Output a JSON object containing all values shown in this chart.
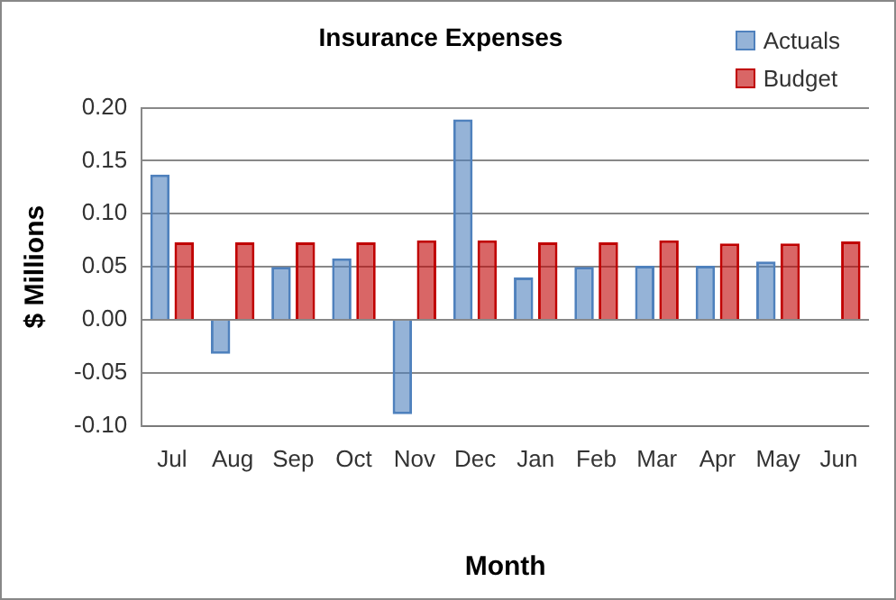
{
  "chart_data": {
    "type": "bar",
    "title": "Insurance Expenses",
    "xlabel": "Month",
    "ylabel": "$ Millions",
    "categories": [
      "Jul",
      "Aug",
      "Sep",
      "Oct",
      "Nov",
      "Dec",
      "Jan",
      "Feb",
      "Mar",
      "Apr",
      "May",
      "Jun"
    ],
    "series": [
      {
        "name": "Actuals",
        "color": "#4f81bd",
        "values": [
          0.137,
          -0.032,
          0.05,
          0.058,
          -0.089,
          0.189,
          0.04,
          0.05,
          0.051,
          0.051,
          0.055,
          null
        ]
      },
      {
        "name": "Budget",
        "color": "#c00000",
        "values": [
          0.073,
          0.073,
          0.073,
          0.073,
          0.075,
          0.075,
          0.073,
          0.073,
          0.075,
          0.072,
          0.072,
          0.074
        ]
      }
    ],
    "ylim": [
      -0.1,
      0.2
    ],
    "yticks": [
      {
        "value": -0.1,
        "label": "-0.10"
      },
      -0.05,
      {
        "value": 0,
        "label": "0.00"
      },
      0.05,
      {
        "value": 0.1,
        "label": "0.10"
      },
      0.15,
      {
        "value": 0.2,
        "label": "0.20"
      }
    ],
    "grid": "y",
    "legend": "top right"
  }
}
